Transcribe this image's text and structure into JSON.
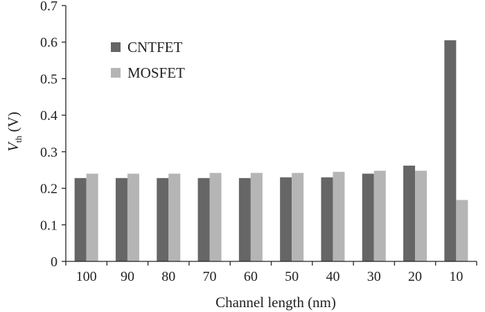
{
  "chart_data": {
    "type": "bar",
    "xlabel": "Channel length (nm)",
    "ylabel": {
      "symbol": "V",
      "subscript": "th",
      "unit": " (V)"
    },
    "categories": [
      "100",
      "90",
      "80",
      "70",
      "60",
      "50",
      "40",
      "30",
      "20",
      "10"
    ],
    "series": [
      {
        "name": "CNTFET",
        "color": "#666666",
        "values": [
          0.228,
          0.228,
          0.228,
          0.228,
          0.228,
          0.23,
          0.23,
          0.24,
          0.262,
          0.605
        ]
      },
      {
        "name": "MOSFET",
        "color": "#b5b5b5",
        "values": [
          0.24,
          0.24,
          0.24,
          0.242,
          0.242,
          0.242,
          0.245,
          0.248,
          0.248,
          0.168
        ]
      }
    ],
    "ylim": [
      0,
      0.7
    ],
    "yticks": [
      "0",
      "0.1",
      "0.2",
      "0.3",
      "0.4",
      "0.5",
      "0.6",
      "0.7"
    ],
    "grid": false,
    "legend_position": "top-left"
  }
}
